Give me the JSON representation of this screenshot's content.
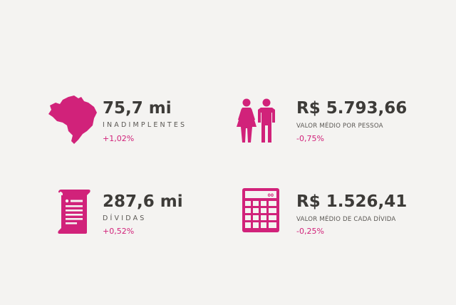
{
  "colors": {
    "accent": "#d1227a",
    "text_dark": "#3d3b38",
    "background": "#f4f3f1"
  },
  "stats": [
    {
      "icon": "brazil-map-icon",
      "value": "75,7 mi",
      "label": "INADIMPLENTES",
      "change": "+1,02%"
    },
    {
      "icon": "people-icon",
      "value": "R$ 5.793,66",
      "label": "VALOR MÉDIO POR PESSOA",
      "change": "-0,75%"
    },
    {
      "icon": "document-icon",
      "value": "287,6 mi",
      "label": "DÍVIDAS",
      "change": "+0,52%"
    },
    {
      "icon": "calculator-icon",
      "value": "R$ 1.526,41",
      "label": "VALOR MÉDIO DE CADA DÍVIDA",
      "change": "-0,25%"
    }
  ]
}
